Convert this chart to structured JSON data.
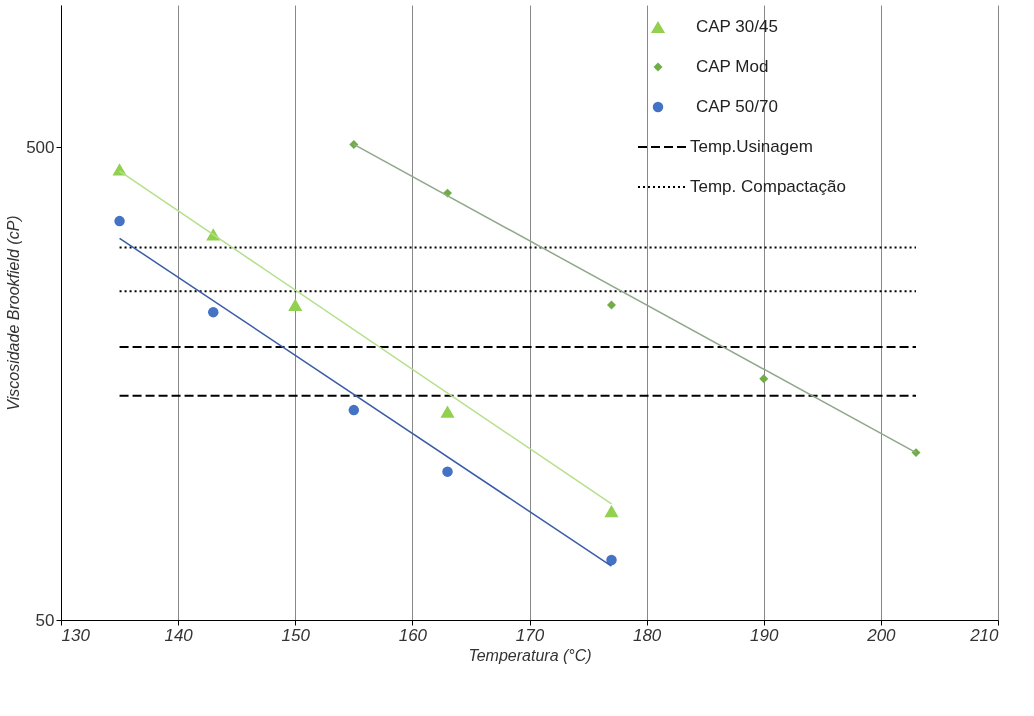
{
  "chart_data": {
    "type": "scatter",
    "xlabel": "Temperatura (°C)",
    "ylabel": "Viscosidade  Brookfield (cP)",
    "xlim": [
      130,
      210
    ],
    "xticks": [
      130,
      140,
      150,
      160,
      170,
      180,
      190,
      200,
      210
    ],
    "ylim": [
      50,
      1000
    ],
    "yticks": [
      50,
      500
    ],
    "log": "y",
    "grid": "x",
    "legend": "top right",
    "series": [
      {
        "name": "CAP 30/45",
        "marker": "triangle",
        "color": "#92d050",
        "x": [
          135,
          143,
          150,
          163,
          177
        ],
        "values": [
          449,
          327,
          232,
          138,
          85
        ]
      },
      {
        "name": "CAP Mod",
        "marker": "diamond",
        "color": "#70ad47",
        "x": [
          155,
          163,
          177,
          190,
          203
        ],
        "values": [
          507,
          400,
          232,
          162,
          113
        ]
      },
      {
        "name": "CAP 50/70",
        "marker": "circle",
        "color": "#4472c4",
        "x": [
          135,
          143,
          155,
          163,
          177
        ],
        "values": [
          349,
          224,
          139,
          103,
          67
        ]
      },
      {
        "name": "Temp.Usinagem",
        "type": "line",
        "marker": "none",
        "line_style": "dashed",
        "color": "#000000",
        "x": [
          135,
          203
        ],
        "values": [
          189,
          189
        ]
      },
      {
        "type": "line",
        "marker": "none",
        "line_style": "dashed",
        "color": "#000000",
        "x": [
          135,
          203
        ],
        "values": [
          149,
          149
        ]
      },
      {
        "name": "Temp. Compactação",
        "type": "line",
        "marker": "none",
        "line_style": "dotted",
        "color": "#000000",
        "x": [
          135,
          203
        ],
        "values": [
          307,
          307
        ]
      },
      {
        "type": "line",
        "marker": "none",
        "line_style": "dotted",
        "color": "#000000",
        "x": [
          135,
          203
        ],
        "values": [
          248,
          248
        ]
      },
      {
        "type": "line",
        "marker": "none",
        "line_style": "solid",
        "color": "#b5e08a",
        "x": [
          135,
          177
        ],
        "values": [
          445,
          88
        ]
      },
      {
        "type": "line",
        "marker": "none",
        "line_style": "solid",
        "color": "#8fa88a",
        "x": [
          155,
          203
        ],
        "values": [
          507,
          113
        ]
      },
      {
        "type": "line",
        "marker": "none",
        "line_style": "solid",
        "color": "#3a5ba8",
        "x": [
          135,
          177
        ],
        "values": [
          321,
          65
        ]
      }
    ]
  }
}
